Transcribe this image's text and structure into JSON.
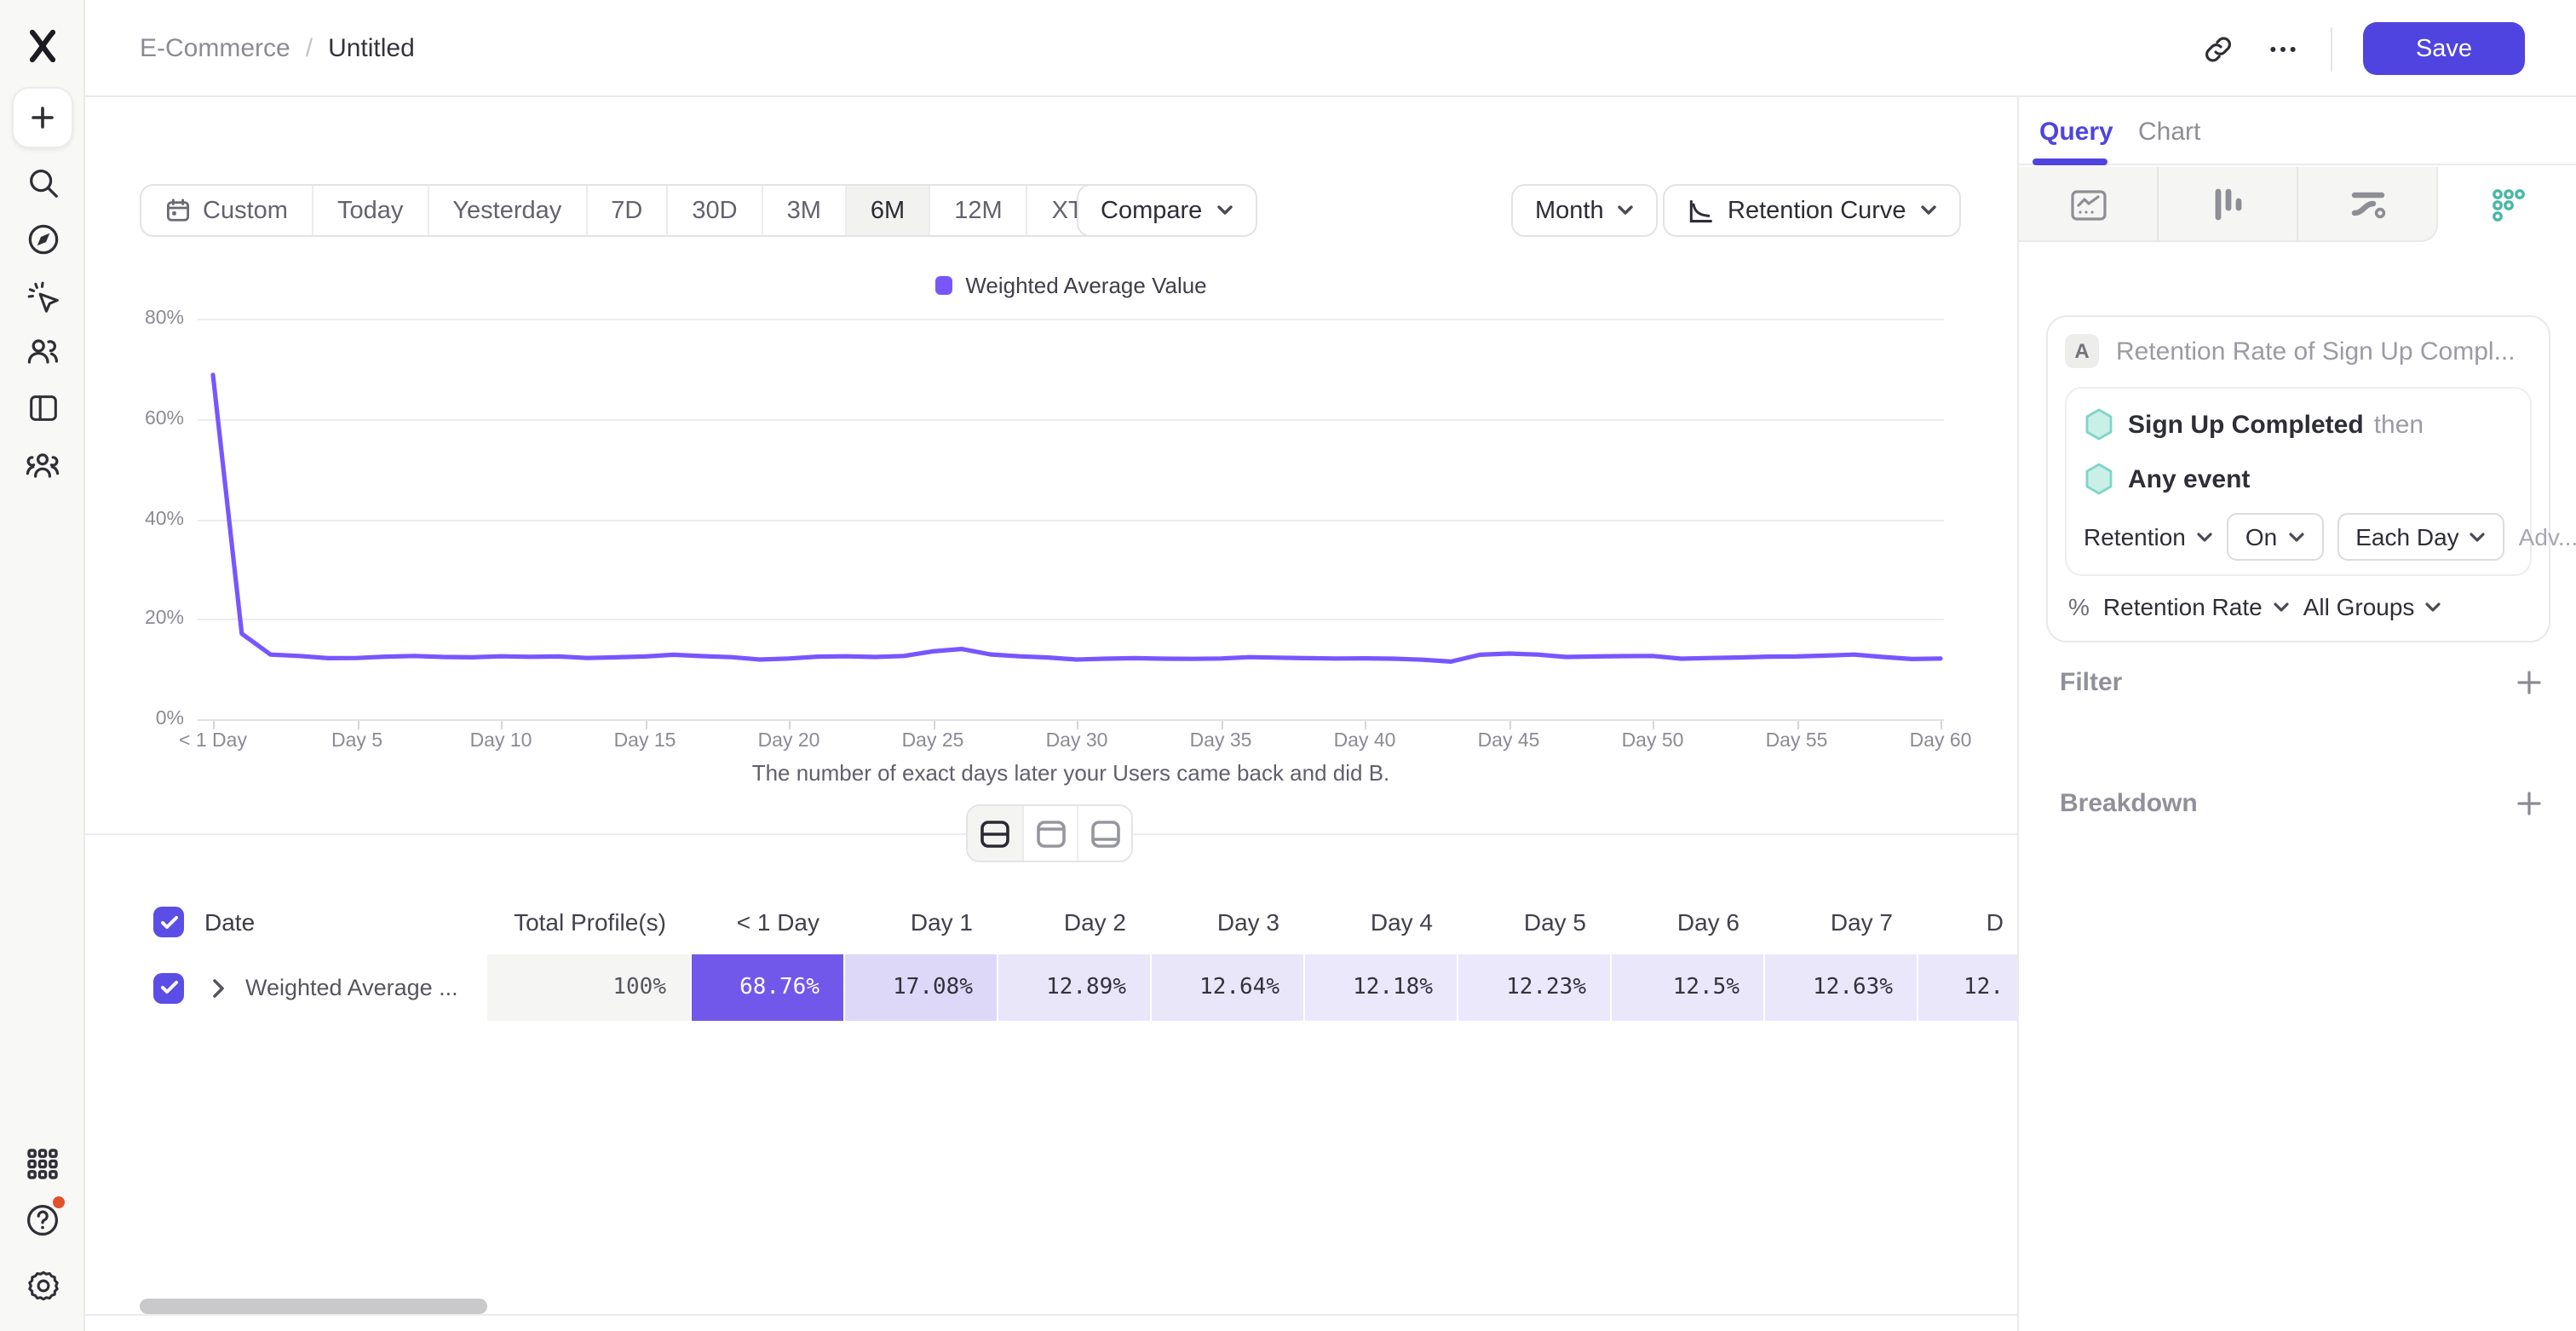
{
  "topbar": {
    "breadcrumb_project": "E-Commerce",
    "breadcrumb_sep": "/",
    "breadcrumb_page": "Untitled",
    "save_label": "Save"
  },
  "toolbar": {
    "ranges": [
      "Custom",
      "Today",
      "Yesterday",
      "7D",
      "30D",
      "3M",
      "6M",
      "12M",
      "XTD"
    ],
    "selected_range": "6M",
    "compare_label": "Compare",
    "granularity_label": "Month",
    "chart_type_label": "Retention Curve"
  },
  "chart_data": {
    "type": "line",
    "legend": [
      {
        "name": "Weighted Average Value",
        "color": "#7856ff"
      }
    ],
    "xlabel_caption": "The number of exact days later your Users came back and did B.",
    "x_tick_labels": [
      "< 1 Day",
      "Day 5",
      "Day 10",
      "Day 15",
      "Day 20",
      "Day 25",
      "Day 30",
      "Day 35",
      "Day 40",
      "Day 45",
      "Day 50",
      "Day 55",
      "Day 60"
    ],
    "y_tick_labels": [
      "80%",
      "60%",
      "40%",
      "20%",
      "0%"
    ],
    "ylim": [
      0,
      80
    ],
    "grid": "horizontal",
    "legend_position": "top-center",
    "series": [
      {
        "name": "Weighted Average Value",
        "color": "#7856ff",
        "x_unit": "days since Sign Up Completed (0 = < 1 Day ... 60 = Day 60)",
        "values": [
          68.76,
          17.08,
          12.89,
          12.64,
          12.18,
          12.23,
          12.5,
          12.63,
          12.42,
          12.35,
          12.55,
          12.45,
          12.52,
          12.22,
          12.35,
          12.52,
          12.88,
          12.6,
          12.38,
          11.92,
          12.12,
          12.5,
          12.55,
          12.42,
          12.62,
          13.55,
          14.02,
          12.92,
          12.55,
          12.32,
          11.92,
          12.1,
          12.18,
          12.1,
          12.05,
          12.12,
          12.4,
          12.3,
          12.2,
          12.12,
          12.15,
          12.1,
          11.88,
          11.52,
          12.88,
          13.1,
          12.9,
          12.42,
          12.52,
          12.58,
          12.62,
          12.1,
          12.22,
          12.32,
          12.5,
          12.52,
          12.7,
          12.9,
          12.42,
          12.02,
          12.12
        ]
      }
    ]
  },
  "table": {
    "date_header": "Date",
    "row_label": "Weighted Average ...",
    "columns": [
      {
        "label": "Total Profile(s)",
        "value": "100%",
        "bg": "#f5f5f3",
        "fg": "#55555e"
      },
      {
        "label": "< 1 Day",
        "value": "68.76%",
        "bg": "#7258ea",
        "fg": "#ffffff"
      },
      {
        "label": "Day 1",
        "value": "17.08%",
        "bg": "#ded8f8",
        "fg": "#32323c"
      },
      {
        "label": "Day 2",
        "value": "12.89%",
        "bg": "#e9e6fa",
        "fg": "#32323c"
      },
      {
        "label": "Day 3",
        "value": "12.64%",
        "bg": "#e9e6fa",
        "fg": "#32323c"
      },
      {
        "label": "Day 4",
        "value": "12.18%",
        "bg": "#ebe8fb",
        "fg": "#32323c"
      },
      {
        "label": "Day 5",
        "value": "12.23%",
        "bg": "#ebe8fb",
        "fg": "#32323c"
      },
      {
        "label": "Day 6",
        "value": "12.5%",
        "bg": "#eae7fa",
        "fg": "#32323c"
      },
      {
        "label": "Day 7",
        "value": "12.63%",
        "bg": "#eae7fa",
        "fg": "#32323c"
      },
      {
        "label": "D",
        "value": "12.",
        "bg": "#eae7fa",
        "fg": "#32323c"
      }
    ]
  },
  "panel": {
    "tabs": [
      "Query",
      "Chart"
    ],
    "active_tab": "Query",
    "query": {
      "step_badge": "A",
      "step_title": "Retention Rate of Sign Up Compl...",
      "first_event": "Sign Up Completed",
      "first_event_suffix": "then",
      "return_event": "Any event",
      "retention_label": "Retention",
      "on_label": "On",
      "each_label": "Each Day",
      "advanced_label": "Adv...",
      "percent_sign": "%",
      "measure_label": "Retention Rate",
      "groups_label": "All Groups"
    },
    "filter_label": "Filter",
    "breakdown_label": "Breakdown"
  },
  "colors": {
    "accent_purple": "#4f44e0",
    "chart_line": "#7856ff",
    "highlight_cell": "#7258ea",
    "teal_icon": "#49b7a4"
  }
}
